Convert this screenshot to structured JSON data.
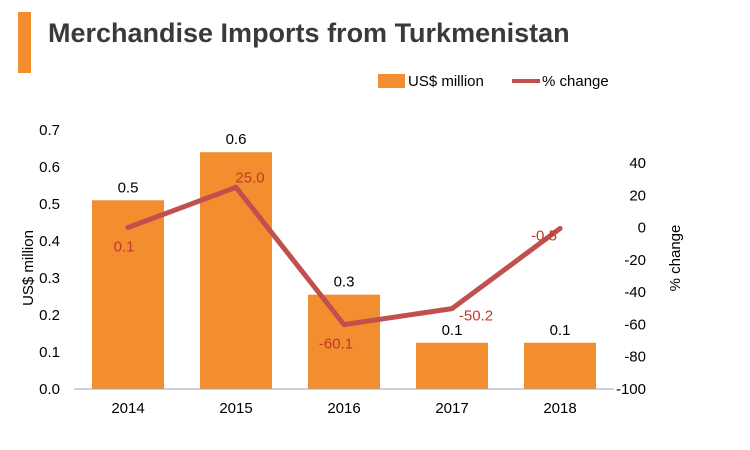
{
  "title": "Merchandise Imports from Turkmenistan",
  "colors": {
    "accent": "#f28e2f",
    "bar": "#f28e2f",
    "line": "#c0504d",
    "pct_label": "#c0392b",
    "title": "#3a3a3a"
  },
  "chart_data": {
    "type": "bar",
    "categories": [
      "2014",
      "2015",
      "2016",
      "2017",
      "2018"
    ],
    "series": [
      {
        "name": "US$ million",
        "type": "bar",
        "axis": "left",
        "values": [
          0.51,
          0.64,
          0.255,
          0.125,
          0.125
        ],
        "labels": [
          "0.5",
          "0.6",
          "0.3",
          "0.1",
          "0.1"
        ]
      },
      {
        "name": "% change",
        "type": "line",
        "axis": "right",
        "values": [
          0.1,
          25.0,
          -60.1,
          -50.2,
          -0.5
        ],
        "labels": [
          "0.1",
          "25.0",
          "-60.1",
          "-50.2",
          "-0.5"
        ]
      }
    ],
    "y_left": {
      "label": "US$ million",
      "range": [
        0,
        0.7
      ],
      "ticks": [
        "0.0",
        "0.1",
        "0.2",
        "0.3",
        "0.4",
        "0.5",
        "0.6",
        "0.7"
      ]
    },
    "y_right": {
      "label": "% change",
      "range": [
        -100,
        50
      ],
      "ticks": [
        "-100",
        "-80",
        "-60",
        "-40",
        "-20",
        "0",
        "20",
        "40"
      ]
    },
    "grid": false,
    "legend_position": "top-right"
  }
}
